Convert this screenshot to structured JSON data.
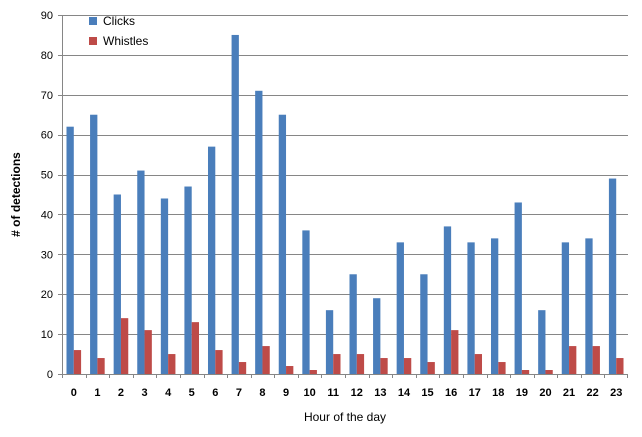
{
  "chart_data": {
    "type": "bar",
    "title": "",
    "xlabel": "Hour of the day",
    "ylabel": "# of detections",
    "categories": [
      "0",
      "1",
      "2",
      "3",
      "4",
      "5",
      "6",
      "7",
      "8",
      "9",
      "10",
      "11",
      "12",
      "13",
      "14",
      "15",
      "16",
      "17",
      "18",
      "19",
      "20",
      "21",
      "22",
      "23"
    ],
    "series": [
      {
        "name": "Clicks",
        "color": "#4a7ebb",
        "values": [
          62,
          65,
          45,
          51,
          44,
          47,
          57,
          85,
          71,
          65,
          36,
          16,
          25,
          19,
          33,
          25,
          37,
          33,
          34,
          43,
          16,
          33,
          34,
          49
        ]
      },
      {
        "name": "Whistles",
        "color": "#be4b48",
        "values": [
          6,
          4,
          14,
          11,
          5,
          13,
          6,
          3,
          7,
          2,
          1,
          5,
          5,
          4,
          4,
          3,
          11,
          5,
          3,
          1,
          1,
          7,
          7,
          4
        ]
      }
    ],
    "ylim": [
      0,
      90
    ],
    "yticks": [
      0,
      10,
      20,
      30,
      40,
      50,
      60,
      70,
      80,
      90
    ],
    "grid": true,
    "legend": "top-left"
  }
}
